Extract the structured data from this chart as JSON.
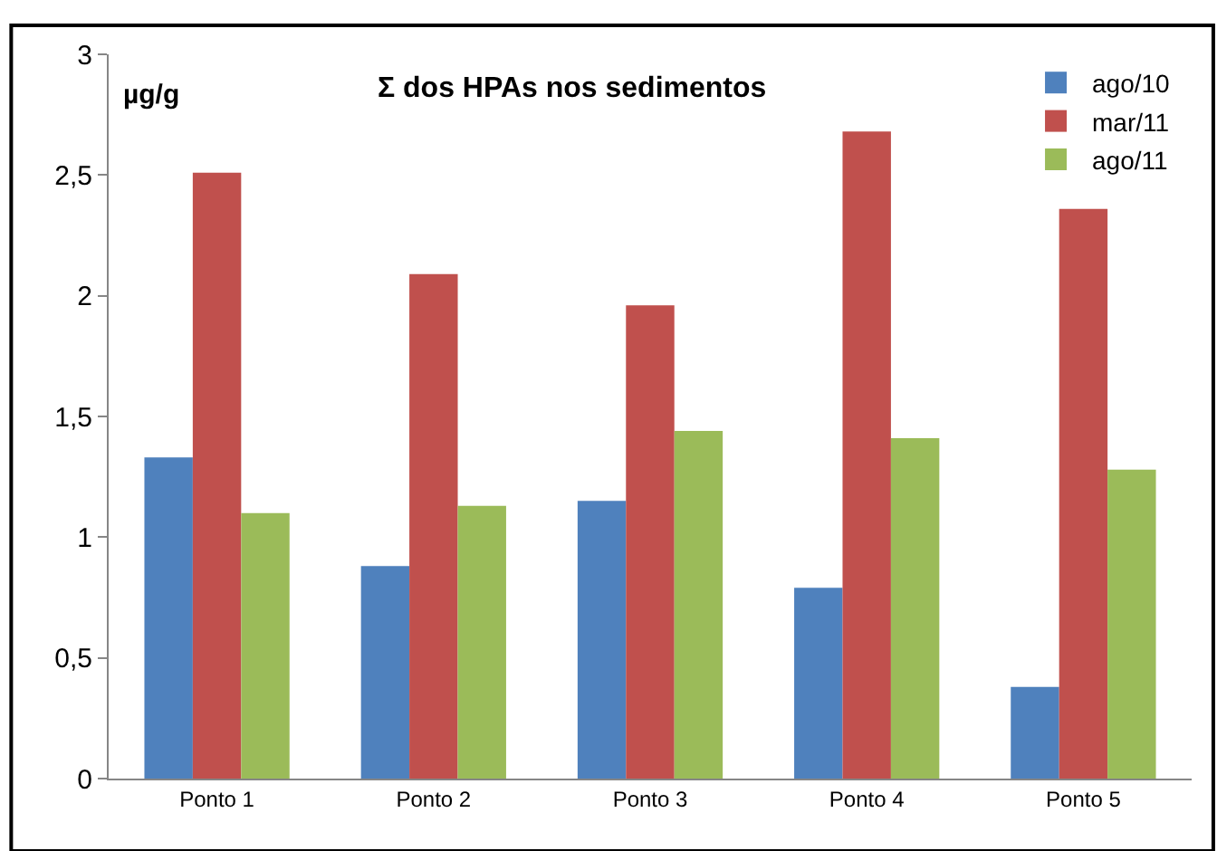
{
  "chart_data": {
    "type": "bar",
    "title": "Σ dos HPAs nos sedimentos",
    "ylabel": "µg/g",
    "categories": [
      "Ponto 1",
      "Ponto 2",
      "Ponto 3",
      "Ponto 4",
      "Ponto 5"
    ],
    "series": [
      {
        "name": "ago/10",
        "color": "#4f81bd",
        "values": [
          1.33,
          0.88,
          1.15,
          0.79,
          0.38
        ]
      },
      {
        "name": "mar/11",
        "color": "#c0504d",
        "values": [
          2.51,
          2.09,
          1.96,
          2.68,
          2.36
        ]
      },
      {
        "name": "ago/11",
        "color": "#9bbb59",
        "values": [
          1.1,
          1.13,
          1.44,
          1.41,
          1.28
        ]
      }
    ],
    "ylim": [
      0,
      3
    ],
    "yticks": [
      0,
      {
        "value": 0.5,
        "label": "0,5"
      },
      1,
      {
        "value": 1.5,
        "label": "1,5"
      },
      2,
      {
        "value": 2.5,
        "label": "2,5"
      },
      3
    ],
    "legend": "top right"
  }
}
